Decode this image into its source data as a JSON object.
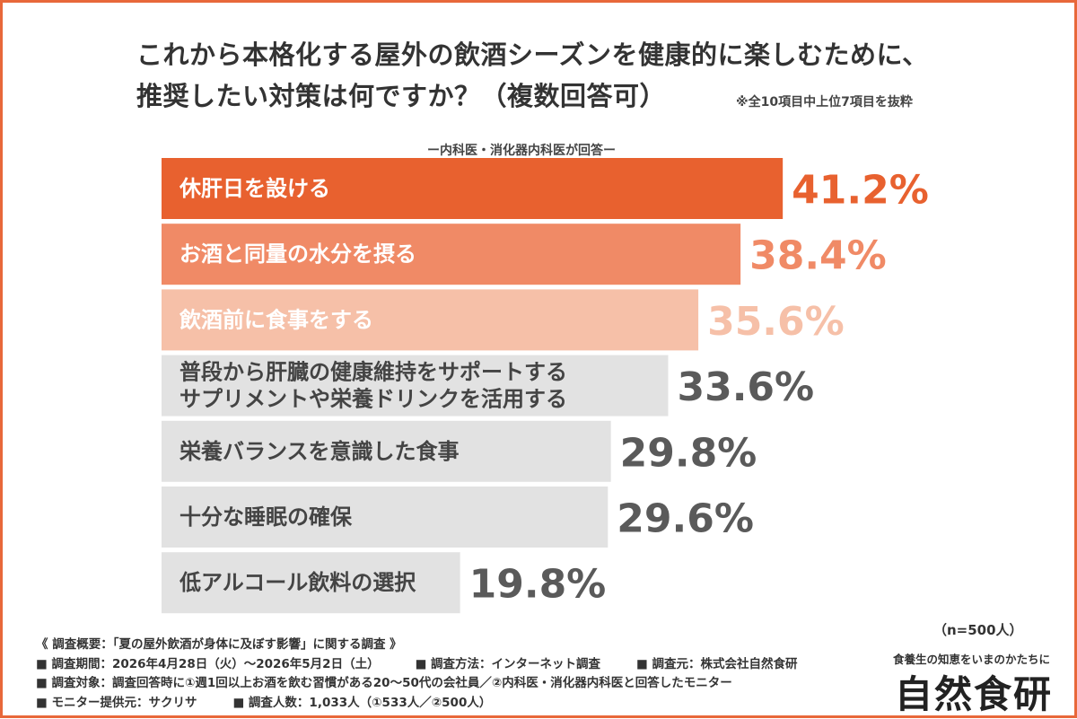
{
  "title_line1": "これから本格化する屋外の飲酒シーズンを健康的に楽しむために、",
  "title_line2": "推奨したい対策は何ですか？（複数回答可）",
  "note": "※全10項目中上位7項目を抜粋",
  "subtitle": "ー内科医・消化器内科医が回答ー",
  "n_label": "（n=500人）",
  "chart_data": {
    "type": "bar",
    "orientation": "horizontal",
    "unit": "%",
    "categories": [
      [
        "休肝日を設ける"
      ],
      [
        "お酒と同量の水分を摂る"
      ],
      [
        "飲酒前に食事をする"
      ],
      [
        "普段から肝臓の健康維持をサポートする",
        "サプリメントや栄養ドリンクを活用する"
      ],
      [
        "栄養バランスを意識した食事"
      ],
      [
        "十分な睡眠の確保"
      ],
      [
        "低アルコール飲料の選択"
      ]
    ],
    "values": [
      41.2,
      38.4,
      35.6,
      33.6,
      29.8,
      29.6,
      19.8
    ],
    "value_labels": [
      "41.2%",
      "38.4%",
      "35.6%",
      "33.6%",
      "29.8%",
      "29.6%",
      "19.8%"
    ],
    "bar_colors": [
      "#e8612f",
      "#f08a66",
      "#f6c0a8",
      "#e2e2e2",
      "#e2e2e2",
      "#e2e2e2",
      "#e2e2e2"
    ],
    "label_colors": [
      "#ffffff",
      "#ffffff",
      "#ffffff",
      "#444444",
      "#444444",
      "#444444",
      "#444444"
    ],
    "value_colors": [
      "#e8612f",
      "#f08a66",
      "#f6c0a8",
      "#5a5a5a",
      "#5a5a5a",
      "#5a5a5a",
      "#5a5a5a"
    ]
  },
  "footer": {
    "overview": "《 調査概要：「夏の屋外飲酒が身体に及ぼす影響」に関する調査 》",
    "period": "■ 調査期間：2026年4月28日（火）～2026年5月2日（土）",
    "method": "■ 調査方法：インターネット調査",
    "source": "■ 調査元：株式会社自然食研",
    "target": "■ 調査対象：調査回答時に①週1回以上お酒を飲む習慣がある20～50代の会社員／②内科医・消化器内科医と回答したモニター",
    "provider": "■ モニター提供元：サクリサ",
    "count": "■ 調査人数：1,033人（①533人／②500人）"
  },
  "logo": {
    "tagline": "食養生の知恵をいまのかたちに",
    "name": "自然食研"
  }
}
